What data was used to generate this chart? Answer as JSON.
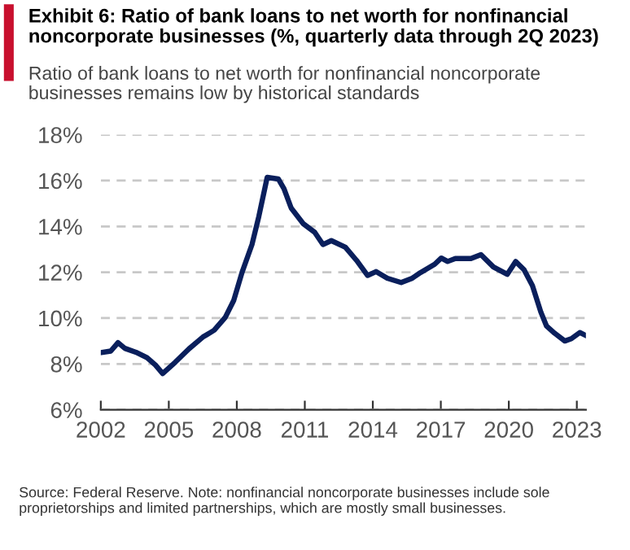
{
  "chart_data": {
    "type": "line",
    "title": "Exhibit 6: Ratio of bank loans to net worth for nonfinancial noncorporate businesses (%, quarterly data through 2Q 2023)",
    "subtitle": "Ratio of bank loans to net worth for nonfinancial noncorporate businesses remains low by historical standards",
    "annotations": [
      "Source: Federal Reserve. Note: nonfinancial noncorporate businesses include sole proprietorships and limited partnerships, which are mostly small businesses."
    ],
    "x": [
      2002.0,
      2002.44,
      2002.76,
      2003.06,
      2003.55,
      2004.04,
      2004.41,
      2004.73,
      2005.28,
      2005.89,
      2006.5,
      2007.0,
      2007.49,
      2007.86,
      2008.23,
      2008.67,
      2008.97,
      2009.34,
      2009.83,
      2010.08,
      2010.4,
      2010.94,
      2011.43,
      2011.8,
      2012.17,
      2012.79,
      2013.28,
      2013.77,
      2014.14,
      2014.64,
      2015.25,
      2015.74,
      2016.11,
      2016.73,
      2017.02,
      2017.3,
      2017.64,
      2018.33,
      2018.77,
      2019.32,
      2019.93,
      2020.3,
      2020.67,
      2021.04,
      2021.41,
      2021.66,
      2022.02,
      2022.47,
      2022.76,
      2023.13,
      2023.38
    ],
    "series": [
      {
        "color": "#0a1f5c",
        "values": [
          8.49,
          8.56,
          8.93,
          8.68,
          8.51,
          8.27,
          7.95,
          7.58,
          8.07,
          8.66,
          9.17,
          9.47,
          10.03,
          10.76,
          11.99,
          13.21,
          14.43,
          16.14,
          16.07,
          15.65,
          14.8,
          14.11,
          13.75,
          13.21,
          13.38,
          13.09,
          12.52,
          11.86,
          12.03,
          11.74,
          11.55,
          11.74,
          11.99,
          12.35,
          12.62,
          12.47,
          12.6,
          12.6,
          12.77,
          12.23,
          11.91,
          12.47,
          12.11,
          11.42,
          10.27,
          9.66,
          9.34,
          9.0,
          9.1,
          9.37,
          9.25
        ]
      }
    ],
    "xlim": [
      2002,
      2023.4
    ],
    "xticks": [
      2002,
      2005,
      2008,
      2011,
      2014,
      2017,
      2020,
      2023
    ],
    "ylim": [
      6,
      18
    ],
    "yticks": [
      {
        "value": 6,
        "label": "6%"
      },
      {
        "value": 8,
        "label": "8%"
      },
      {
        "value": 10,
        "label": "10%"
      },
      {
        "value": 12,
        "label": "12%"
      },
      {
        "value": 14,
        "label": "14%"
      },
      {
        "value": 16,
        "label": "16%"
      },
      {
        "value": 18,
        "label": "18%"
      }
    ],
    "grid": "y",
    "line_style": "solid",
    "marker": "none"
  }
}
